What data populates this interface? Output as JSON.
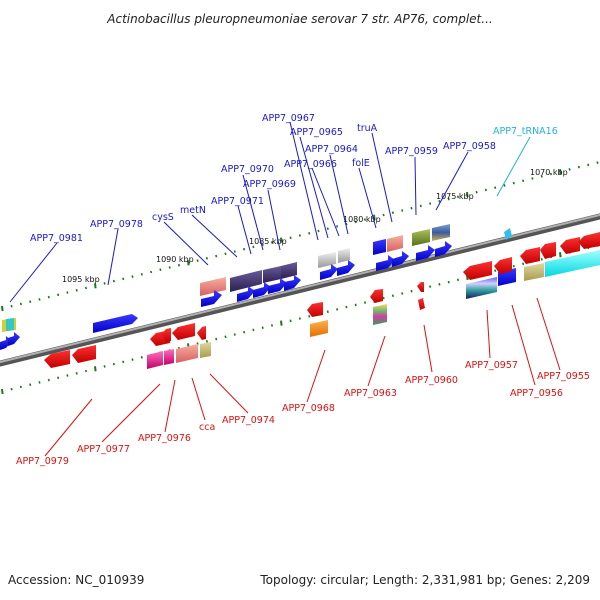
{
  "title": "Actinobacillus pleuropneumoniae serovar 7 str. AP76, complet...",
  "footer": {
    "accession": "Accession: NC_010939",
    "topology": "Topology: circular; Length: 2,331,981 bp; Genes: 2,209"
  },
  "colors": {
    "upper_label": "#1a1acc",
    "lower_label": "#dd1111",
    "trna_label": "#22b4d4",
    "backbone": "#7a7a7a",
    "tick": "#1a7a1a"
  },
  "scale": [
    {
      "label": "1095 kbp"
    },
    {
      "label": "1090 kbp"
    },
    {
      "label": "1085 kbp"
    },
    {
      "label": "1080 kbp"
    },
    {
      "label": "1075 kbp"
    },
    {
      "label": "1070 kbp"
    }
  ],
  "upper_labels": [
    {
      "text": "APP7_0981"
    },
    {
      "text": "APP7_0978"
    },
    {
      "text": "cysS"
    },
    {
      "text": "metN"
    },
    {
      "text": "APP7_0971"
    },
    {
      "text": "APP7_0970"
    },
    {
      "text": "APP7_0969"
    },
    {
      "text": "APP7_0967"
    },
    {
      "text": "APP7_0965"
    },
    {
      "text": "APP7_0966"
    },
    {
      "text": "APP7_0964"
    },
    {
      "text": "folE"
    },
    {
      "text": "truA"
    },
    {
      "text": "APP7_0959"
    },
    {
      "text": "APP7_0958"
    }
  ],
  "trna_labels": [
    {
      "text": "APP7_tRNA16"
    }
  ],
  "lower_labels": [
    {
      "text": "APP7_0979"
    },
    {
      "text": "APP7_0977"
    },
    {
      "text": "APP7_0976"
    },
    {
      "text": "cca"
    },
    {
      "text": "APP7_0974"
    },
    {
      "text": "APP7_0968"
    },
    {
      "text": "APP7_0963"
    },
    {
      "text": "APP7_0960"
    },
    {
      "text": "APP7_0957"
    },
    {
      "text": "APP7_0956"
    },
    {
      "text": "APP7_0955"
    }
  ]
}
